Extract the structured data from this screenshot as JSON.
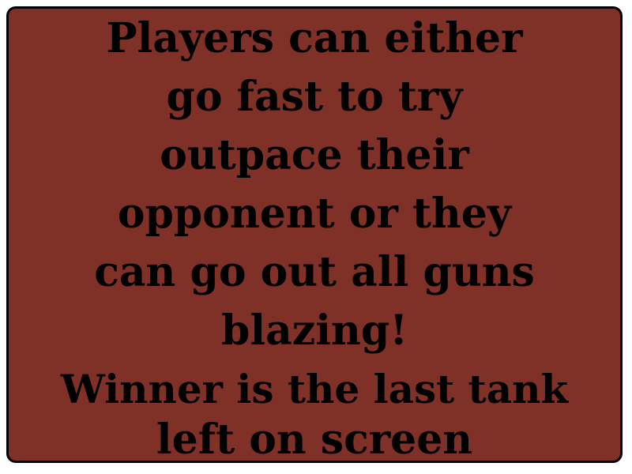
{
  "panel": {
    "background_color": "#7f3128",
    "text_color": "#000000",
    "lines": [
      "Players can either",
      "go fast to try",
      "outpace their",
      "opponent or they",
      "can go out all guns",
      "blazing!",
      "Winner is the last tank",
      "left on screen"
    ]
  }
}
